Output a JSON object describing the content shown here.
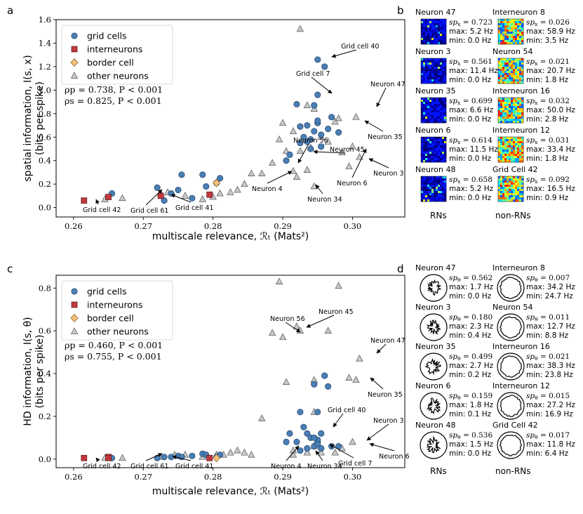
{
  "figure": {
    "panel_a_label": "a",
    "panel_b_label": "b",
    "panel_c_label": "c",
    "panel_d_label": "d"
  },
  "chart_data": [
    {
      "panel": "a",
      "type": "scatter",
      "xlabel": "multiscale relevance, ℛₜ (Mats²)",
      "ylabel_line1": "spatial information, I(s, x)",
      "ylabel_line2": "(bits per spike)",
      "xlim": [
        0.2575,
        0.3075
      ],
      "ylim": [
        -0.08,
        1.6
      ],
      "xticks": [
        0.26,
        0.27,
        0.28,
        0.29,
        0.3
      ],
      "xtick_labels": [
        "0.26",
        "0.27",
        "0.28",
        "0.29",
        "0.30"
      ],
      "yticks": [
        0.0,
        0.2,
        0.4,
        0.6,
        0.8,
        1.0,
        1.2,
        1.4,
        1.6
      ],
      "ytick_labels": [
        "0.0",
        "0.2",
        "0.4",
        "0.6",
        "0.8",
        "1.0",
        "1.2",
        "1.4",
        "1.6"
      ],
      "legend": [
        "grid cells",
        "interneurons",
        "border cell",
        "other neurons"
      ],
      "stats_line1": "ρp = 0.738, P < 0.001",
      "stats_line2": "ρs = 0.825, P < 0.001",
      "series": [
        {
          "name": "grid cells",
          "x": [
            0.2655,
            0.272,
            0.273,
            0.274,
            0.275,
            0.2755,
            0.277,
            0.2785,
            0.279,
            0.2805,
            0.281,
            0.2905,
            0.291,
            0.292,
            0.2925,
            0.293,
            0.2935,
            0.294,
            0.2945,
            0.295,
            0.295,
            0.2955,
            0.296,
            0.2965,
            0.297,
            0.298,
            0.2925,
            0.2945,
            0.295,
            0.295,
            0.2955,
            0.294,
            0.2935
          ],
          "y": [
            0.12,
            0.17,
            0.06,
            0.12,
            0.15,
            0.28,
            0.08,
            0.28,
            0.18,
            0.21,
            0.25,
            0.4,
            0.45,
            0.88,
            0.69,
            0.6,
            0.7,
            0.58,
            0.65,
            0.72,
            0.96,
            0.62,
            1.2,
            0.67,
            0.77,
            0.64,
            0.55,
            0.87,
            0.74,
            1.26,
            0.52,
            0.5,
            0.56
          ]
        },
        {
          "name": "interneurons",
          "x": [
            0.2615,
            0.265,
            0.2725,
            0.2795
          ],
          "y": [
            0.06,
            0.09,
            0.1,
            0.11
          ]
        },
        {
          "name": "border cell",
          "x": [
            0.2805
          ],
          "y": [
            0.21
          ]
        },
        {
          "name": "other neurons",
          "x": [
            0.2645,
            0.267,
            0.2725,
            0.2735,
            0.276,
            0.2785,
            0.28,
            0.281,
            0.2825,
            0.2835,
            0.2845,
            0.2855,
            0.287,
            0.2885,
            0.2895,
            0.29,
            0.2905,
            0.2915,
            0.292,
            0.2925,
            0.2935,
            0.294,
            0.2945,
            0.2955,
            0.2965,
            0.2975,
            0.298,
            0.2985,
            0.2995,
            0.3,
            0.3005,
            0.301,
            0.2935,
            0.2945,
            0.2925,
            0.2915
          ],
          "y": [
            0.07,
            0.08,
            0.12,
            0.13,
            0.1,
            0.07,
            0.09,
            0.12,
            0.13,
            0.15,
            0.2,
            0.29,
            0.29,
            0.38,
            0.58,
            0.72,
            0.48,
            0.65,
            0.26,
            0.48,
            0.32,
            0.51,
            0.84,
            0.6,
            0.56,
            0.73,
            0.76,
            0.47,
            0.35,
            0.52,
            0.77,
            0.43,
            0.87,
            0.18,
            1.52,
            0.31
          ]
        }
      ],
      "annotations": [
        "Grid cell 40",
        "Grid cell 7",
        "Neuron 47",
        "Neuron 56",
        "Neuron 45",
        "Neuron 35",
        "Neuron 3",
        "Neuron 6",
        "Neuron 4",
        "Neuron 34",
        "Grid cell 42",
        "Grid cell 61",
        "Grid cell 41"
      ]
    },
    {
      "panel": "c",
      "type": "scatter",
      "xlabel": "multiscale relevance, ℛₜ (Mats²)",
      "ylabel_line1": "HD information, I(s, θ)",
      "ylabel_line2": "(bits per spike)",
      "xlim": [
        0.2575,
        0.3075
      ],
      "ylim": [
        -0.04,
        0.86
      ],
      "xticks": [
        0.26,
        0.27,
        0.28,
        0.29,
        0.3
      ],
      "xtick_labels": [
        "0.26",
        "0.27",
        "0.28",
        "0.29",
        "0.30"
      ],
      "yticks": [
        0.0,
        0.2,
        0.4,
        0.6,
        0.8
      ],
      "ytick_labels": [
        "0.0",
        "0.2",
        "0.4",
        "0.6",
        "0.8"
      ],
      "legend": [
        "grid cells",
        "interneurons",
        "border cell",
        "other neurons"
      ],
      "stats_line1": "ρp = 0.460, P < 0.001",
      "stats_line2": "ρs = 0.755, P < 0.001",
      "series": [
        {
          "name": "grid cells",
          "x": [
            0.2655,
            0.272,
            0.273,
            0.274,
            0.275,
            0.2755,
            0.277,
            0.2785,
            0.279,
            0.2805,
            0.281,
            0.2905,
            0.291,
            0.292,
            0.2925,
            0.293,
            0.2935,
            0.294,
            0.2945,
            0.295,
            0.295,
            0.2955,
            0.296,
            0.2965,
            0.297,
            0.298,
            0.2925,
            0.2945,
            0.295,
            0.2955,
            0.2945,
            0.295,
            0.2935
          ],
          "y": [
            0.005,
            0.005,
            0.01,
            0.01,
            0.015,
            0.01,
            0.015,
            0.025,
            0.02,
            0.01,
            0.02,
            0.08,
            0.12,
            0.08,
            0.04,
            0.15,
            0.12,
            0.1,
            0.06,
            0.08,
            0.22,
            0.05,
            0.39,
            0.34,
            0.06,
            0.06,
            0.22,
            0.35,
            0.09,
            0.12,
            0.1,
            0.07,
            0.05
          ]
        },
        {
          "name": "interneurons",
          "x": [
            0.2615,
            0.265,
            0.265,
            0.2795
          ],
          "y": [
            0.005,
            0.01,
            0.005,
            0.005
          ]
        },
        {
          "name": "border cell",
          "x": [
            0.2805
          ],
          "y": [
            0.005
          ]
        },
        {
          "name": "other neurons",
          "x": [
            0.2645,
            0.267,
            0.2725,
            0.2745,
            0.276,
            0.2785,
            0.2805,
            0.2815,
            0.2825,
            0.2835,
            0.2845,
            0.2855,
            0.287,
            0.2885,
            0.2895,
            0.29,
            0.2905,
            0.2915,
            0.292,
            0.2925,
            0.2935,
            0.2945,
            0.2955,
            0.2965,
            0.2975,
            0.298,
            0.2985,
            0.2995,
            0.3,
            0.3005,
            0.301,
            0.2935,
            0.2945,
            0.2945,
            0.2915
          ],
          "y": [
            0.005,
            0.005,
            0.01,
            0.02,
            0.02,
            0.01,
            0.02,
            0.02,
            0.03,
            0.04,
            0.03,
            0.02,
            0.19,
            0.59,
            0.83,
            0.57,
            0.36,
            0.02,
            0.62,
            0.6,
            0.03,
            0.37,
            0.03,
            0.6,
            0.03,
            0.81,
            0.05,
            0.38,
            0.08,
            0.37,
            0.47,
            0.03,
            0.06,
            0.22,
            0.04
          ]
        }
      ],
      "annotations": [
        "Neuron 56",
        "Neuron 45",
        "Neuron 47",
        "Neuron 35",
        "Grid cell 40",
        "Neuron 3",
        "Neuron 6",
        "Grid cell 7",
        "Neuron 34",
        "Neuron 4",
        "Grid cell 42",
        "Grid cell 61",
        "Grid cell 41"
      ]
    }
  ],
  "panel_b": {
    "footer_left": "RNs",
    "footer_right": "non-RNs",
    "rows": [
      {
        "left": {
          "name": "Neuron 47",
          "sp": "= 0.723",
          "max": "max: 5.2 Hz",
          "min": "min: 0.0 Hz"
        },
        "right": {
          "name": "Interneuron 8",
          "sp": "= 0.026",
          "max": "max: 58.9 Hz",
          "min": "min: 3.5 Hz"
        }
      },
      {
        "left": {
          "name": "Neuron 3",
          "sp": "= 0.561",
          "max": "max: 11.4 Hz",
          "min": "min: 0.0 Hz"
        },
        "right": {
          "name": "Neuron 54",
          "sp": "= 0.021",
          "max": "max: 20.7 Hz",
          "min": "min: 1.8 Hz"
        }
      },
      {
        "left": {
          "name": "Neuron 35",
          "sp": "= 0.699",
          "max": "max: 6.6 Hz",
          "min": "min: 0.0 Hz"
        },
        "right": {
          "name": "Interneuron 16",
          "sp": "= 0.032",
          "max": "max: 50.0 Hz",
          "min": "min: 2.8 Hz"
        }
      },
      {
        "left": {
          "name": "Neuron 6",
          "sp": "= 0.614",
          "max": "max: 11.5 Hz",
          "min": "min: 0.0 Hz"
        },
        "right": {
          "name": "Interneuron 12",
          "sp": "= 0.031",
          "max": "max: 33.4 Hz",
          "min": "min: 1.8 Hz"
        }
      },
      {
        "left": {
          "name": "Neuron 48",
          "sp": "= 0.658",
          "max": "max: 5.2 Hz",
          "min": "min: 0.0 Hz"
        },
        "right": {
          "name": "Grid Cell 42",
          "sp": "= 0.092",
          "max": "max: 16.5 Hz",
          "min": "min: 0.9 Hz"
        }
      }
    ]
  },
  "panel_d": {
    "footer_left": "RNs",
    "footer_right": "non-RNs",
    "rows": [
      {
        "left": {
          "name": "Neuron 47",
          "sp": "= 0.562",
          "max": "max: 1.7 Hz",
          "min": "min: 0.0 Hz"
        },
        "right": {
          "name": "Interneuron 8",
          "sp": "= 0.007",
          "max": "max: 34.2 Hz",
          "min": "min: 24.7 Hz"
        }
      },
      {
        "left": {
          "name": "Neuron 3",
          "sp": "= 0.180",
          "max": "max: 2.3 Hz",
          "min": "min: 0.4 Hz"
        },
        "right": {
          "name": "Neuron 54",
          "sp": "= 0.011",
          "max": "max: 12.7 Hz",
          "min": "min: 8.8 Hz"
        }
      },
      {
        "left": {
          "name": "Neuron 35",
          "sp": "= 0.499",
          "max": "max: 2.7 Hz",
          "min": "min: 0.2 Hz"
        },
        "right": {
          "name": "Interneuron 16",
          "sp": "= 0.021",
          "max": "max: 38.3 Hz",
          "min": "min: 23.8 Hz"
        }
      },
      {
        "left": {
          "name": "Neuron 6",
          "sp": "= 0.159",
          "max": "max: 1.8 Hz",
          "min": "min: 0.1 Hz"
        },
        "right": {
          "name": "Interneuron 12",
          "sp": "= 0.015",
          "max": "max: 27.2 Hz",
          "min": "min: 16.9 Hz"
        }
      },
      {
        "left": {
          "name": "Neuron 48",
          "sp": "= 0.536",
          "max": "max: 1.5 Hz",
          "min": "min: 0.0 Hz"
        },
        "right": {
          "name": "Grid Cell 42",
          "sp": "= 0.017",
          "max": "max: 11.8 Hz",
          "min": "min: 6.4 Hz"
        }
      }
    ]
  },
  "colors": {
    "grid": "#4a7fb5",
    "interneuron": "#c0393f",
    "border": "#f5c07a",
    "other": "#c8c8c8"
  }
}
